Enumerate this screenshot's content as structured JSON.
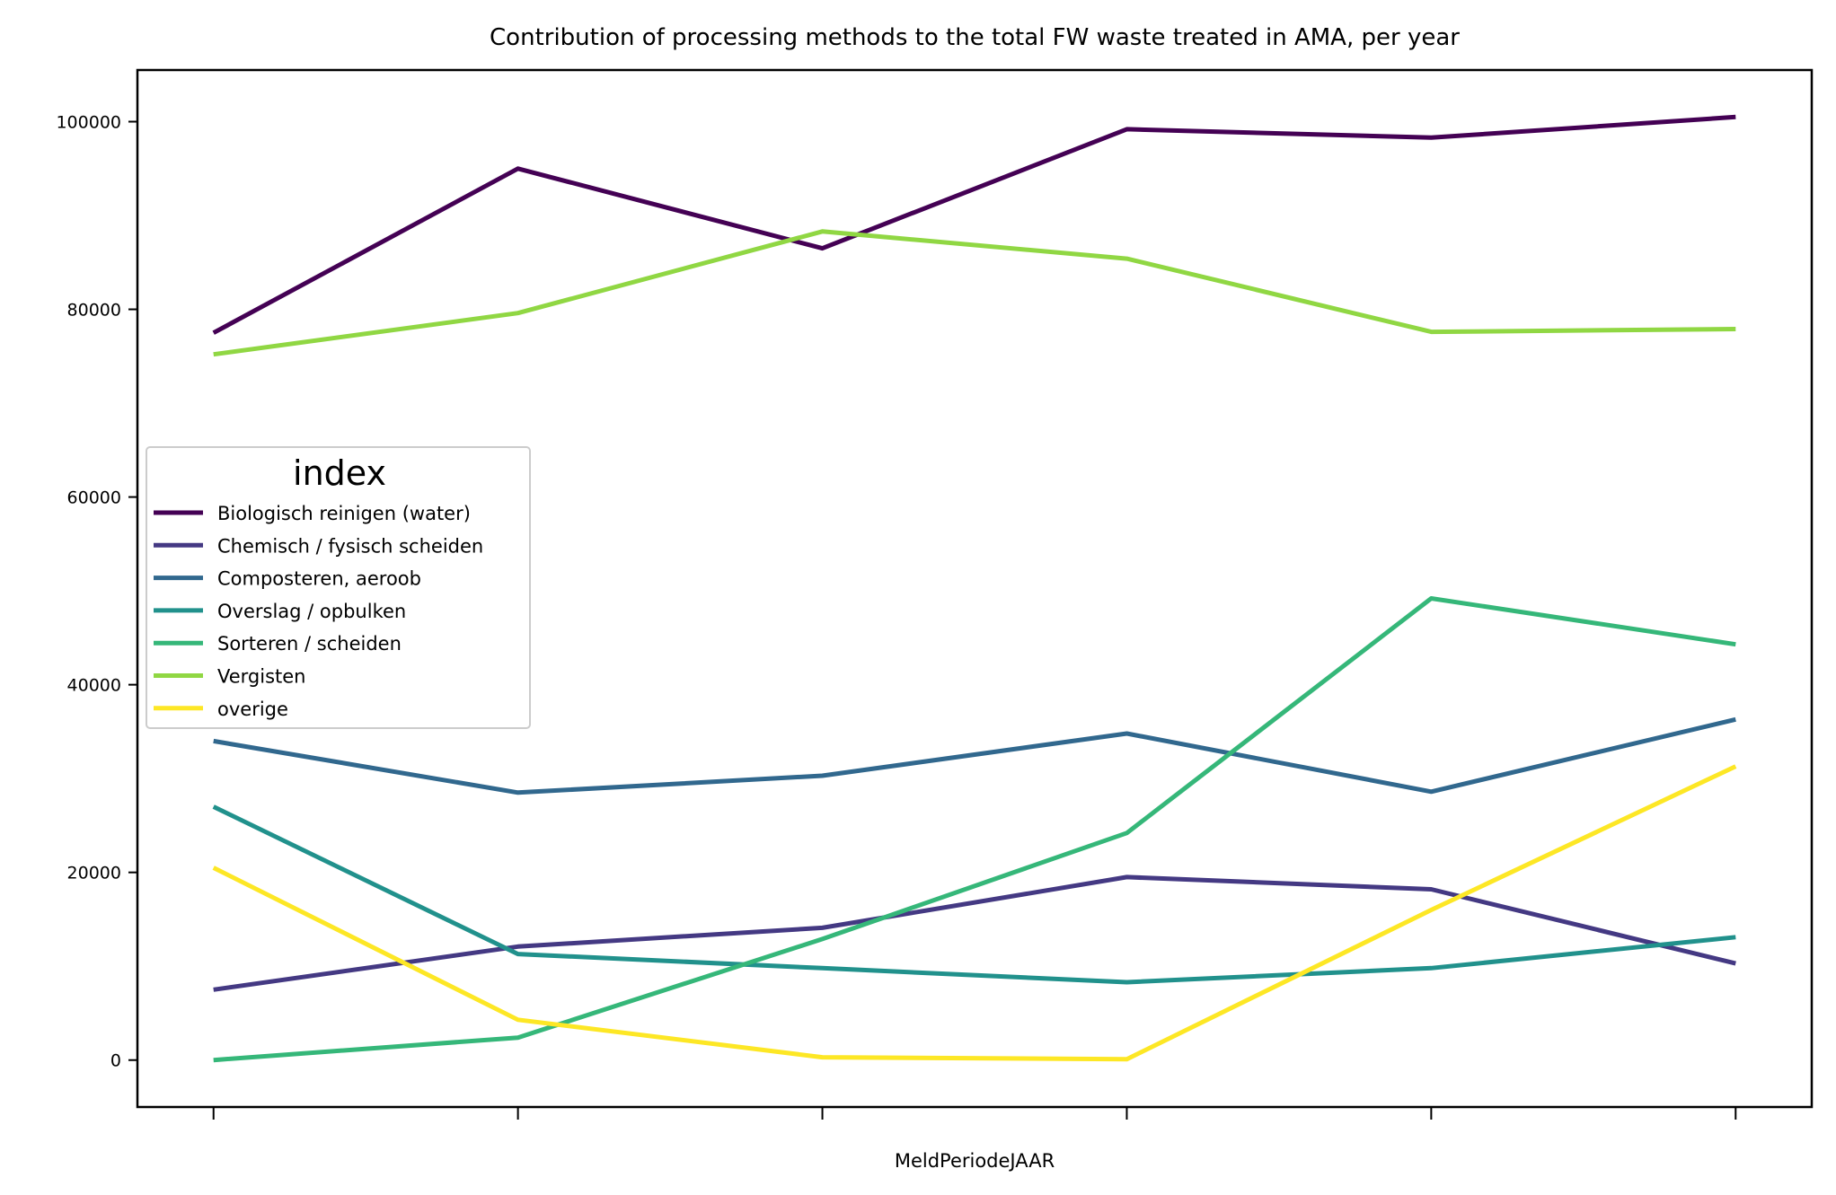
{
  "chart_data": {
    "type": "line",
    "title": "Contribution of processing methods to the total FW waste treated in AMA, per year",
    "xlabel": "MeldPeriodeJAAR",
    "ylabel": "",
    "x": [
      0,
      1,
      2,
      3,
      4,
      5
    ],
    "x_tick_labels": [
      "",
      "",
      "",
      "",
      "",
      ""
    ],
    "y_ticks": [
      0,
      20000,
      40000,
      60000,
      80000,
      100000
    ],
    "y_tick_labels": [
      "0",
      "20000",
      "40000",
      "60000",
      "80000",
      "100000"
    ],
    "ylim": [
      -5000,
      105500
    ],
    "xlim": [
      -0.25,
      5.25
    ],
    "grid": false,
    "legend": {
      "title": "index",
      "placement": "center-left"
    },
    "series": [
      {
        "name": "Biologisch reinigen (water)",
        "color": "#440154",
        "values": [
          77500,
          95000,
          86500,
          99200,
          98300,
          100500
        ]
      },
      {
        "name": "Chemisch / fysisch scheiden",
        "color": "#443983",
        "values": [
          7500,
          12100,
          14100,
          19500,
          18200,
          10300
        ]
      },
      {
        "name": "Composteren, aeroob",
        "color": "#31688e",
        "values": [
          34000,
          28500,
          30300,
          34800,
          28600,
          36300
        ]
      },
      {
        "name": "Overslag / opbulken",
        "color": "#21918c",
        "values": [
          27000,
          11300,
          9800,
          8300,
          9800,
          13100
        ]
      },
      {
        "name": "Sorteren / scheiden",
        "color": "#35b779",
        "values": [
          0,
          2400,
          12900,
          24200,
          49200,
          44300
        ]
      },
      {
        "name": "Vergisten",
        "color": "#90d743",
        "values": [
          75200,
          79600,
          88300,
          85400,
          77600,
          77900
        ]
      },
      {
        "name": "overige",
        "color": "#fde725",
        "values": [
          20500,
          4300,
          300,
          100,
          16000,
          31300
        ]
      }
    ]
  }
}
